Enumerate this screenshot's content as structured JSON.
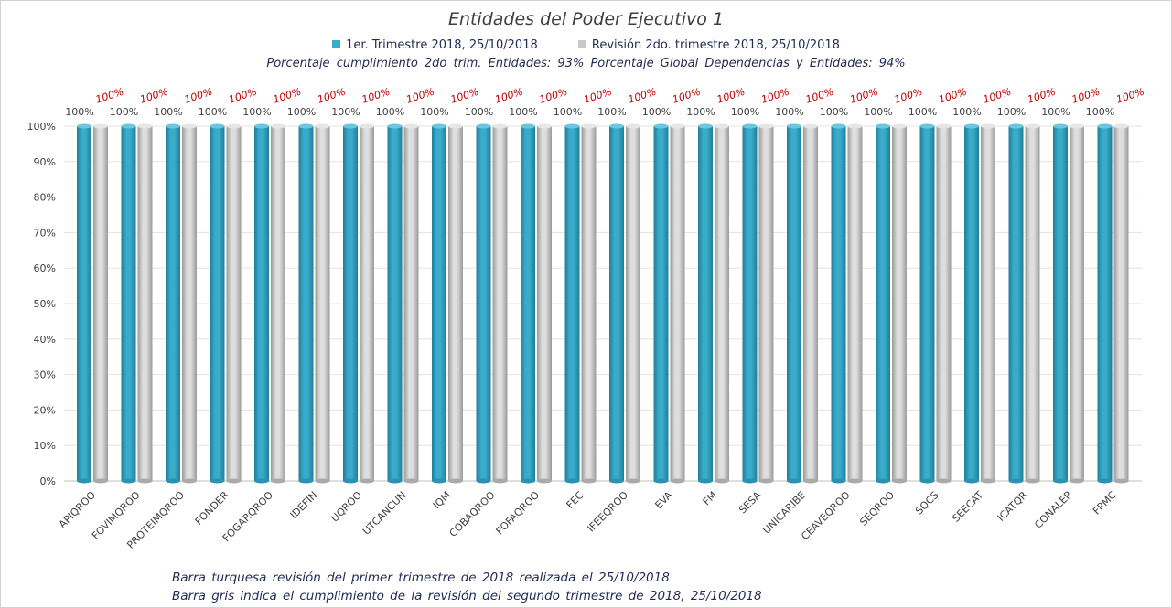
{
  "chart_data": {
    "type": "bar",
    "title": "Entidades del Poder Ejecutivo 1",
    "categories": [
      "APIQROO",
      "FOVIMQROO",
      "PROTEIMQROO",
      "FONDER",
      "FOGARQROO",
      "IDEFIN",
      "UQROO",
      "UTCANCUN",
      "IQM",
      "COBAQROO",
      "FOFAQROO",
      "FEC",
      "IFEEQROO",
      "EVA",
      "FM",
      "SESA",
      "UNICARIBE",
      "CEAVEQROO",
      "SEQROO",
      "SQCS",
      "SEECAT",
      "ICATQR",
      "CONALEP",
      "FPMC"
    ],
    "series": [
      {
        "name": "1er. Trimestre 2018, 25/10/2018",
        "color": "#3aaccb",
        "values": [
          100,
          100,
          100,
          100,
          100,
          100,
          100,
          100,
          100,
          100,
          100,
          100,
          100,
          100,
          100,
          100,
          100,
          100,
          100,
          100,
          100,
          100,
          100,
          100
        ],
        "label_color": "#404040"
      },
      {
        "name": "Revisión 2do. trimestre 2018, 25/10/2018",
        "color": "#c8c8c8",
        "values": [
          100,
          100,
          100,
          100,
          100,
          100,
          100,
          100,
          100,
          100,
          100,
          100,
          100,
          100,
          100,
          100,
          100,
          100,
          100,
          100,
          100,
          100,
          100,
          100
        ],
        "label_color": "#c00000"
      }
    ],
    "ylim": [
      0,
      100
    ],
    "yticks": [
      "0%",
      "10%",
      "20%",
      "30%",
      "40%",
      "50%",
      "60%",
      "70%",
      "80%",
      "90%",
      "100%"
    ],
    "data_label_suffix": "%",
    "grid": true,
    "legend_position": "top"
  },
  "summary": {
    "text": "Porcentaje cumplimiento 2do trim. Entidades: 93%   Porcentaje Global Dependencias y Entidades: 94%"
  },
  "notes": {
    "line1": "Barra turquesa revisión del primer trimestre de 2018 realizada el 25/10/2018",
    "line2": "Barra gris indica el cumplimiento de la revisión del segundo trimestre de 2018, 25/10/2018"
  }
}
